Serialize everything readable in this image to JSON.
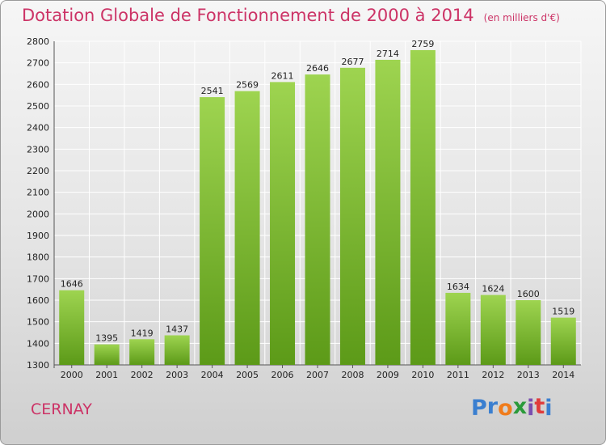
{
  "title": "Dotation Globale de Fonctionnement de 2000 à 2014",
  "unit": "(en milliers d'€)",
  "city": "CERNAY",
  "logo": {
    "text": "Proxiti",
    "letters": [
      "P",
      "r",
      "o",
      "x",
      "i",
      "t",
      "i"
    ],
    "colors": [
      "#3a7fd0",
      "#3a7fd0",
      "#f07c1c",
      "#2a9a3a",
      "#7a4fb0",
      "#e03c3c",
      "#3a7fd0"
    ]
  },
  "colors": {
    "bar_top": "#9ed450",
    "bar_bottom": "#5c9a18",
    "title": "#cc3366",
    "grid": "#ffffff"
  },
  "chart_data": {
    "type": "bar",
    "title": "Dotation Globale de Fonctionnement de 2000 à 2014",
    "categories": [
      "2000",
      "2001",
      "2002",
      "2003",
      "2004",
      "2005",
      "2006",
      "2007",
      "2008",
      "2009",
      "2010",
      "2011",
      "2012",
      "2013",
      "2014"
    ],
    "values": [
      1646,
      1395,
      1419,
      1437,
      2541,
      2569,
      2611,
      2646,
      2677,
      2714,
      2759,
      1634,
      1624,
      1600,
      1519
    ],
    "ylim": [
      1300,
      2800
    ],
    "yticks": [
      1300,
      1400,
      1500,
      1600,
      1700,
      1800,
      1900,
      2000,
      2100,
      2200,
      2300,
      2400,
      2500,
      2600,
      2700,
      2800
    ],
    "grid": true,
    "data_labels": true
  }
}
